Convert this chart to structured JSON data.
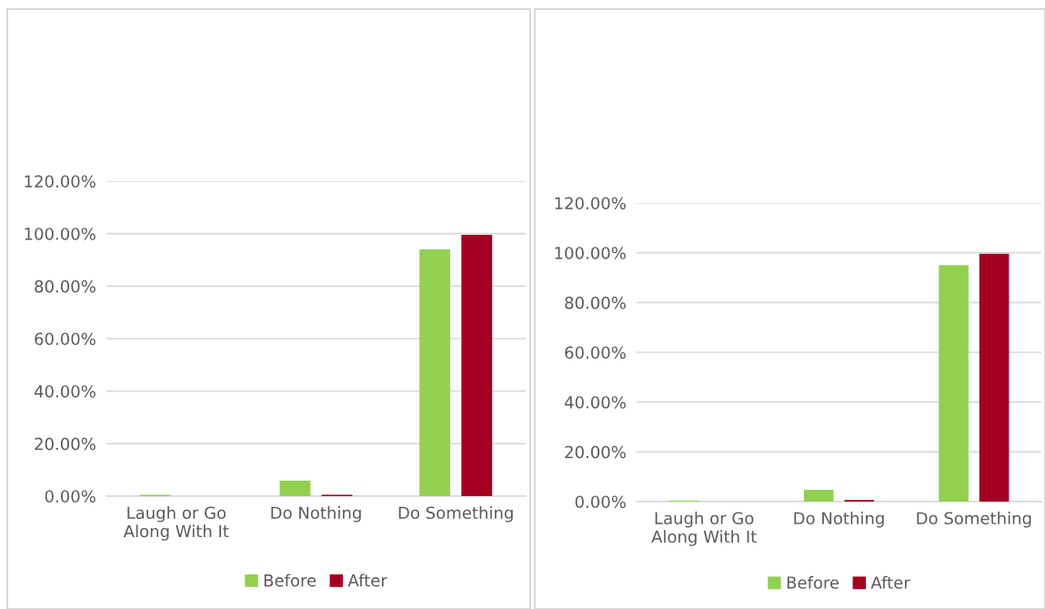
{
  "chart_data": [
    {
      "type": "bar",
      "categories": [
        "Laugh or Go\nAlong With It",
        "Do Nothing",
        "Do Something"
      ],
      "series": [
        {
          "name": "Before",
          "color": "#92d050",
          "values": [
            0.5,
            5.9,
            94
          ]
        },
        {
          "name": "After",
          "color": "#a50021",
          "values": [
            0,
            0.5,
            99.5
          ]
        }
      ],
      "ylim": [
        0,
        120
      ],
      "yticks": [
        {
          "value": 0,
          "label": "0.00%"
        },
        {
          "value": 20,
          "label": "20.00%"
        },
        {
          "value": 40,
          "label": "40.00%"
        },
        {
          "value": 60,
          "label": "60.00%"
        },
        {
          "value": 80,
          "label": "80.00%"
        },
        {
          "value": 100,
          "label": "100.00%"
        },
        {
          "value": 120,
          "label": "120.00%"
        }
      ],
      "grid": "y",
      "legend": "bottom"
    },
    {
      "type": "bar",
      "categories": [
        "Laugh or Go\nAlong With It",
        "Do Nothing",
        "Do Something"
      ],
      "series": [
        {
          "name": "Before",
          "color": "#92d050",
          "values": [
            0.4,
            4.8,
            95
          ]
        },
        {
          "name": "After",
          "color": "#a50021",
          "values": [
            0,
            0.6,
            99.6
          ]
        }
      ],
      "ylim": [
        0,
        120
      ],
      "yticks": [
        {
          "value": 0,
          "label": "0.00%"
        },
        {
          "value": 20,
          "label": "20.00%"
        },
        {
          "value": 40,
          "label": "40.00%"
        },
        {
          "value": 60,
          "label": "60.00%"
        },
        {
          "value": 80,
          "label": "80.00%"
        },
        {
          "value": 100,
          "label": "100.00%"
        },
        {
          "value": 120,
          "label": "120.00%"
        }
      ],
      "grid": "y",
      "legend": "bottom"
    }
  ]
}
